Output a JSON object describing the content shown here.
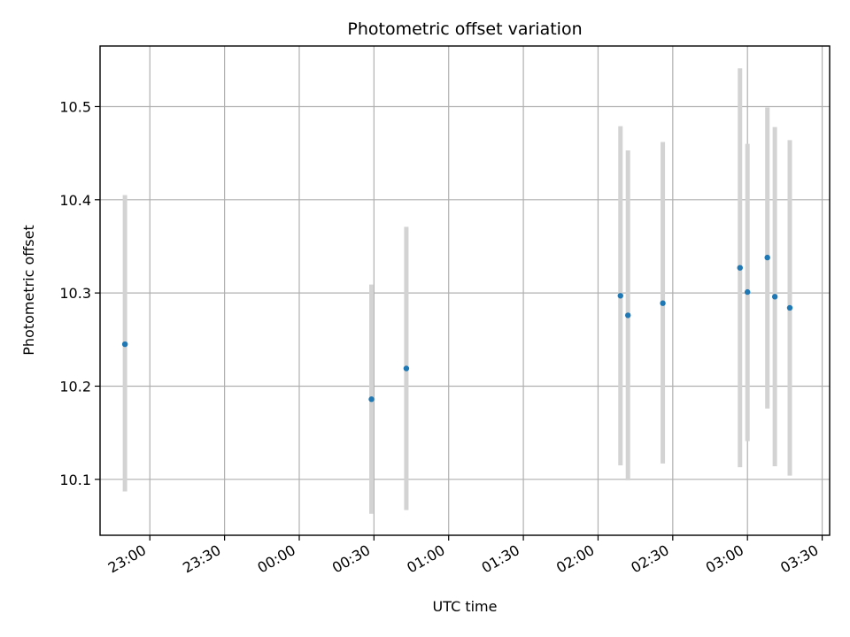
{
  "chart_data": {
    "type": "scatter",
    "title": "Photometric offset variation",
    "xlabel": "UTC time",
    "ylabel": "Photometric offset",
    "xlim": [
      "22:40",
      "03:33"
    ],
    "ylim": [
      10.04,
      10.565
    ],
    "x_ticks": [
      "23:00",
      "23:30",
      "00:00",
      "00:30",
      "01:00",
      "01:30",
      "02:00",
      "02:30",
      "03:00",
      "03:30"
    ],
    "y_ticks": [
      "10.1",
      "10.2",
      "10.3",
      "10.4",
      "10.5"
    ],
    "grid": true,
    "points": [
      {
        "time": "22:50",
        "y": 10.245,
        "ylow": 10.087,
        "yhigh": 10.405
      },
      {
        "time": "00:29",
        "y": 10.186,
        "ylow": 10.063,
        "yhigh": 10.309
      },
      {
        "time": "00:43",
        "y": 10.219,
        "ylow": 10.067,
        "yhigh": 10.371
      },
      {
        "time": "02:09",
        "y": 10.297,
        "ylow": 10.115,
        "yhigh": 10.479
      },
      {
        "time": "02:12",
        "y": 10.276,
        "ylow": 10.099,
        "yhigh": 10.453
      },
      {
        "time": "02:26",
        "y": 10.289,
        "ylow": 10.117,
        "yhigh": 10.462
      },
      {
        "time": "02:57",
        "y": 10.327,
        "ylow": 10.113,
        "yhigh": 10.541
      },
      {
        "time": "03:00",
        "y": 10.301,
        "ylow": 10.141,
        "yhigh": 10.46
      },
      {
        "time": "03:08",
        "y": 10.338,
        "ylow": 10.176,
        "yhigh": 10.499
      },
      {
        "time": "03:11",
        "y": 10.296,
        "ylow": 10.114,
        "yhigh": 10.478
      },
      {
        "time": "03:17",
        "y": 10.284,
        "ylow": 10.104,
        "yhigh": 10.464
      }
    ]
  },
  "colors": {
    "marker": "#1f77b4",
    "errorbar": "#d3d3d3",
    "grid": "#b0b0b0"
  }
}
